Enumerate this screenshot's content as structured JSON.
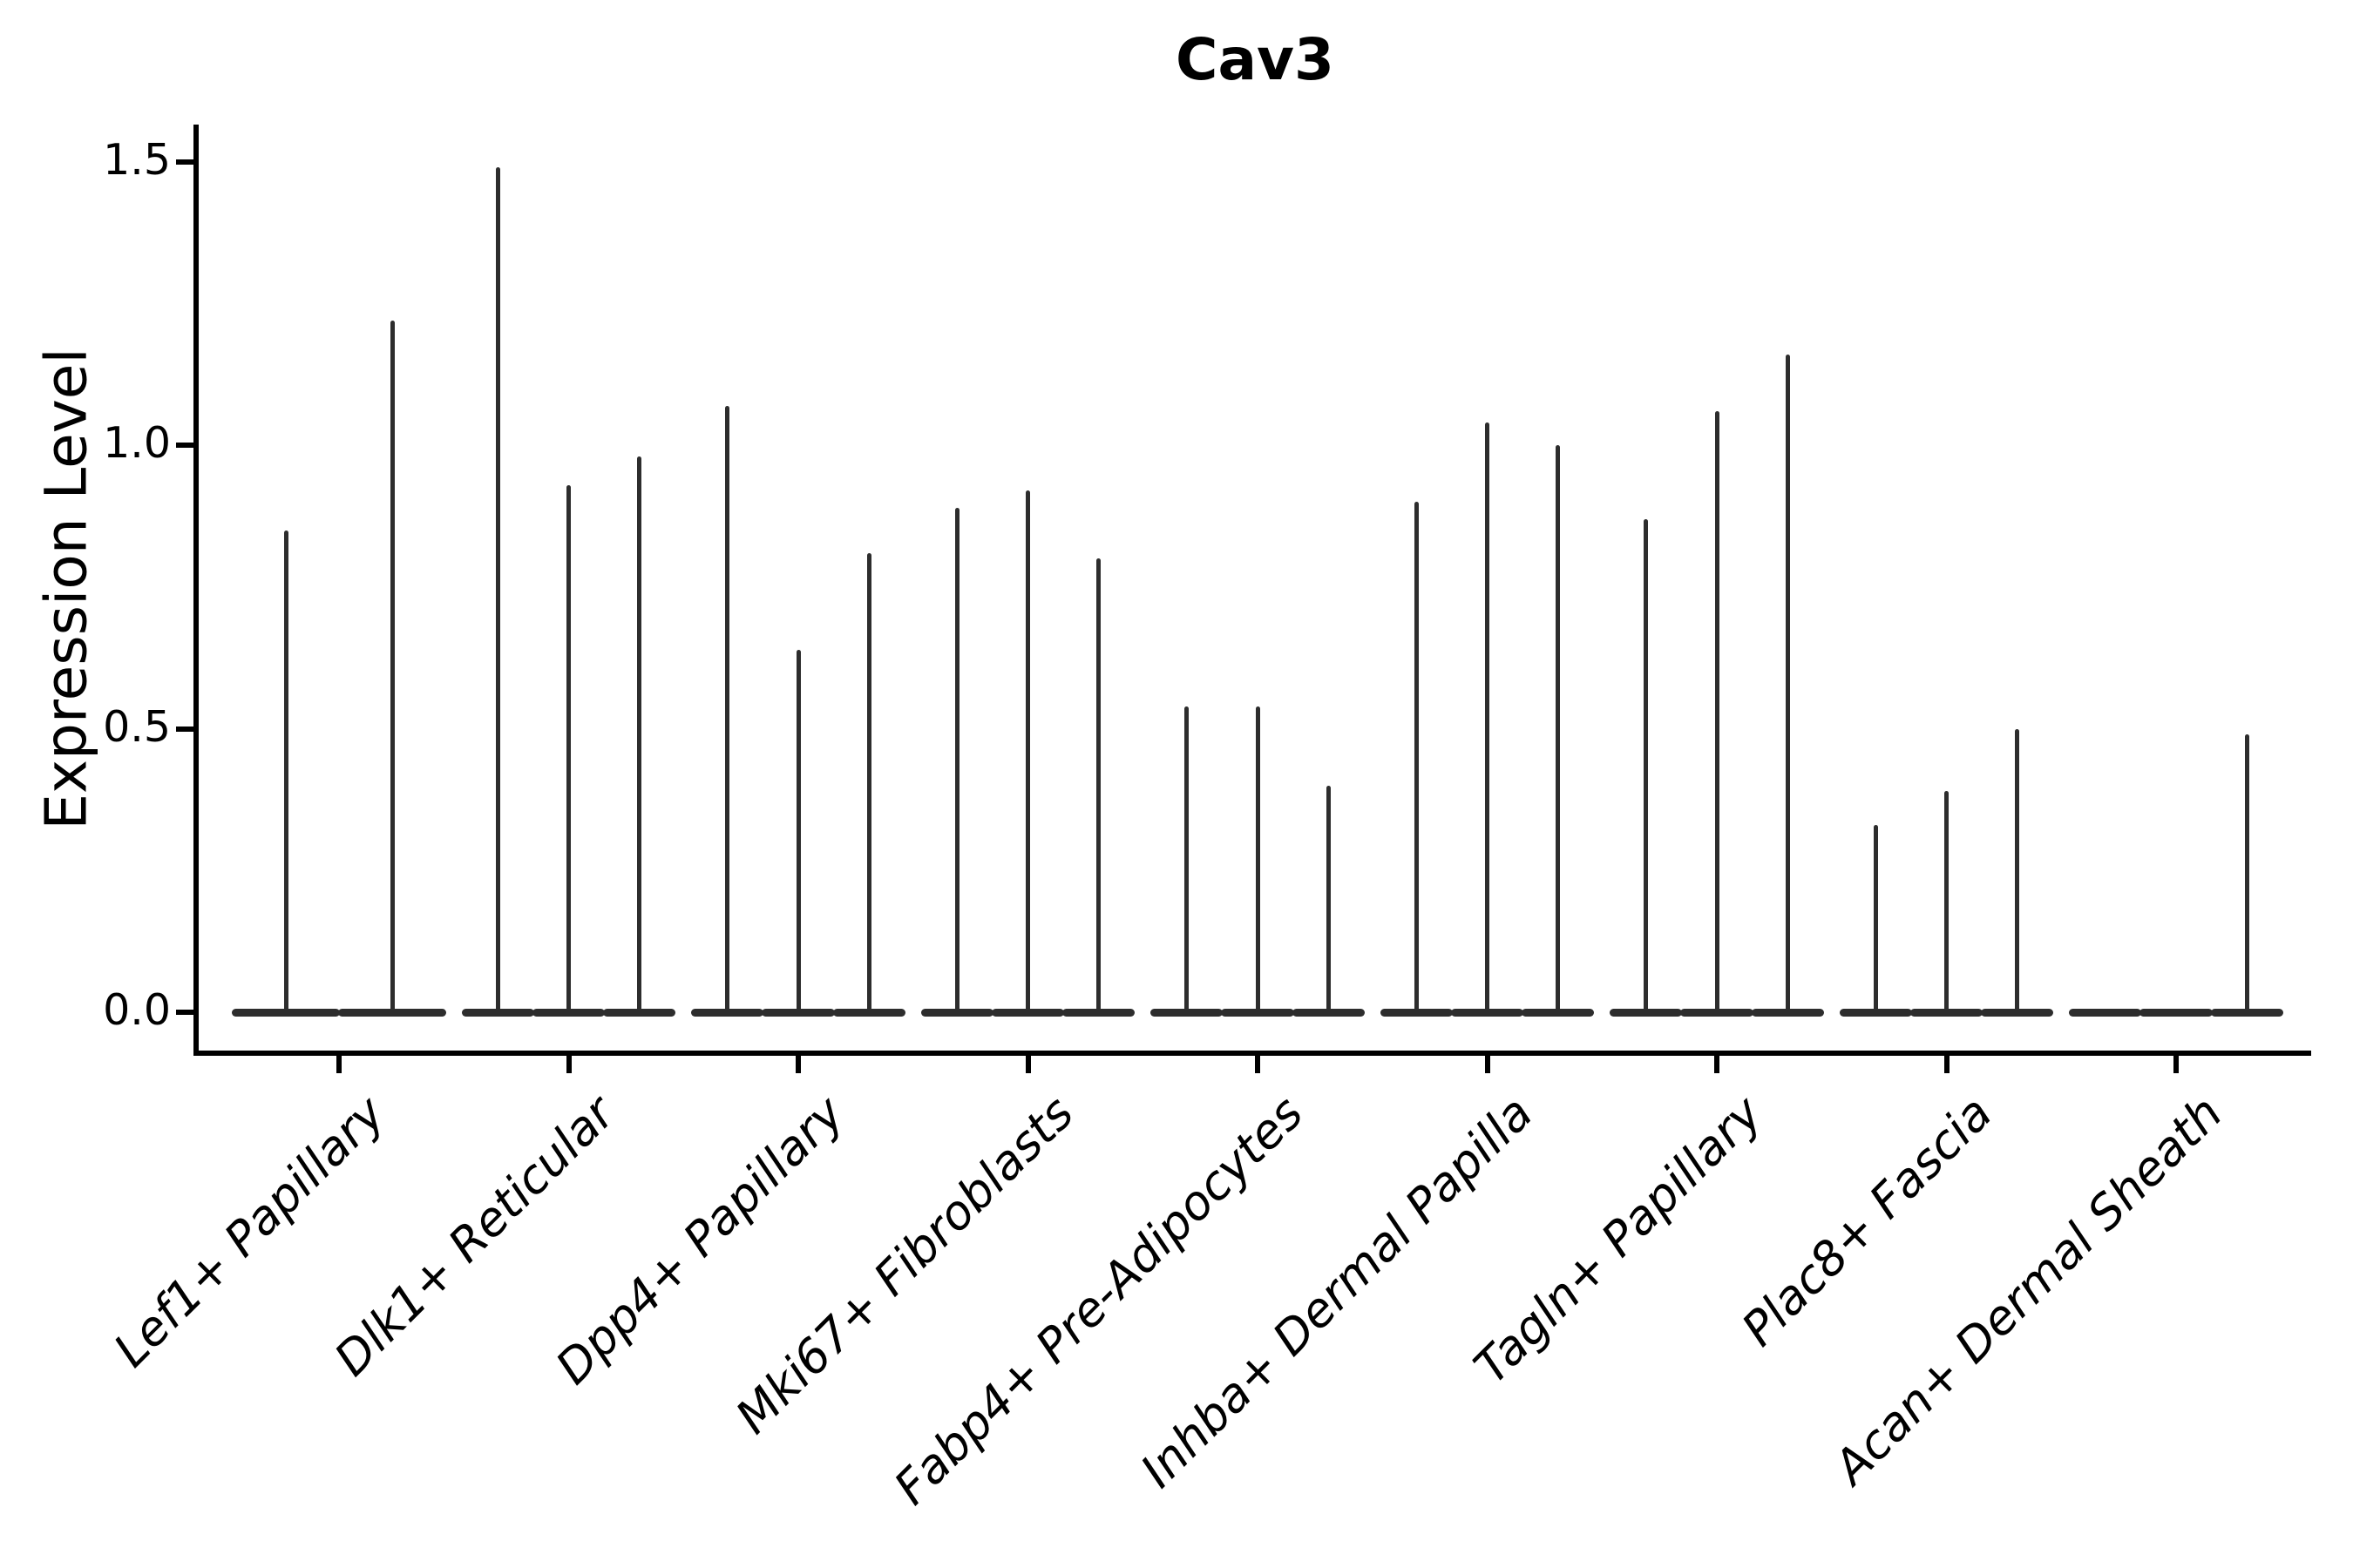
{
  "chart_data": {
    "type": "violin",
    "title": "Cav3",
    "ylabel": "Expression Level",
    "xlabel": "",
    "ylim": [
      0,
      1.5
    ],
    "yticks": [
      0.0,
      0.5,
      1.0,
      1.5
    ],
    "ytick_labels": [
      "0.0",
      "0.5",
      "1.0",
      "1.5"
    ],
    "grid": false,
    "legend": "none",
    "x_tick_rotation": 45,
    "x_tick_style": "italic",
    "categories": [
      "Lef1+ Papillary",
      "Dlk1+ Reticular",
      "Dpp4+ Papillary",
      "Mki67+ Fibroblasts",
      "Fabp4+ Pre-Adipocytes",
      "Inhba+ Dermal Papilla",
      "Tagln+ Papillary",
      "Plac8+ Fascia",
      "Acan+ Dermal Sheath"
    ],
    "violins": [
      [
        0.85,
        1.22
      ],
      [
        1.49,
        0.93,
        0.98
      ],
      [
        1.07,
        0.64,
        0.81
      ],
      [
        0.89,
        0.92,
        0.8
      ],
      [
        0.54,
        0.54,
        0.4
      ],
      [
        0.9,
        1.04,
        1.0
      ],
      [
        0.87,
        1.06,
        1.16
      ],
      [
        0.33,
        0.39,
        0.5
      ],
      [
        0.0,
        0.0,
        0.49
      ]
    ],
    "violins_note": "max expression reached by each thin violin within a category; 0 = flat baseline violin only",
    "violin_color": "#2d2d2d",
    "axis_color": "#000000",
    "text_color": "#000000",
    "background_color": "#ffffff"
  }
}
